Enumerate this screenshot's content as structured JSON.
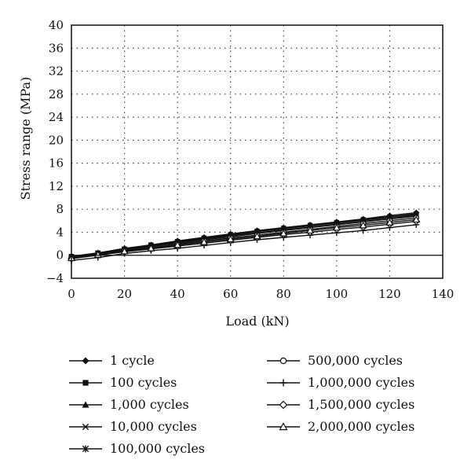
{
  "chart_data": {
    "type": "line",
    "title": "",
    "xlabel": "Load (kN)",
    "ylabel": "Stress range (MPa)",
    "xlim": [
      0,
      140
    ],
    "ylim": [
      -4,
      40
    ],
    "x_ticks": [
      0,
      20,
      40,
      60,
      80,
      100,
      120,
      140
    ],
    "y_ticks": [
      -4,
      0,
      4,
      8,
      12,
      16,
      20,
      24,
      28,
      32,
      36,
      40
    ],
    "grid": "dotted",
    "legend_position": "bottom",
    "x": [
      0,
      10,
      20,
      30,
      40,
      50,
      60,
      70,
      80,
      90,
      100,
      110,
      120,
      130
    ],
    "series": [
      {
        "name": "1 cycle",
        "marker": "diamond-filled",
        "values": [
          -0.2,
          0.4,
          1.2,
          1.8,
          2.5,
          3.1,
          3.7,
          4.3,
          4.8,
          5.3,
          5.8,
          6.3,
          6.9,
          7.4
        ]
      },
      {
        "name": "100 cycles",
        "marker": "square-filled",
        "values": [
          -0.2,
          0.4,
          1.1,
          1.8,
          2.4,
          3.0,
          3.6,
          4.2,
          4.7,
          5.2,
          5.7,
          6.2,
          6.7,
          7.2
        ]
      },
      {
        "name": "1,000 cycles",
        "marker": "triangle-filled",
        "values": [
          -0.2,
          0.4,
          1.1,
          1.7,
          2.3,
          2.9,
          3.5,
          4.1,
          4.6,
          5.1,
          5.6,
          6.1,
          6.6,
          7.1
        ]
      },
      {
        "name": "10,000 cycles",
        "marker": "x",
        "values": [
          -0.3,
          0.3,
          1.0,
          1.6,
          2.2,
          2.8,
          3.4,
          3.9,
          4.4,
          4.9,
          5.4,
          5.9,
          6.4,
          6.9
        ]
      },
      {
        "name": "100,000 cycles",
        "marker": "asterisk",
        "values": [
          -0.3,
          0.3,
          0.9,
          1.5,
          2.1,
          2.7,
          3.2,
          3.8,
          4.3,
          4.8,
          5.3,
          5.8,
          6.3,
          6.8
        ]
      },
      {
        "name": "500,000 cycles",
        "marker": "circle-open",
        "values": [
          -0.4,
          0.2,
          0.8,
          1.3,
          1.9,
          2.5,
          3.0,
          3.5,
          4.0,
          4.5,
          5.0,
          5.5,
          6.0,
          6.5
        ]
      },
      {
        "name": "1,000,000 cycles",
        "marker": "plus",
        "values": [
          -0.9,
          -0.4,
          0.3,
          0.8,
          1.2,
          1.7,
          2.2,
          2.7,
          3.1,
          3.5,
          3.9,
          4.3,
          4.8,
          5.3
        ]
      },
      {
        "name": "1,500,000 cycles",
        "marker": "diamond-open",
        "values": [
          -0.6,
          0.0,
          0.6,
          1.1,
          1.6,
          2.1,
          2.6,
          3.1,
          3.6,
          4.0,
          4.5,
          4.9,
          5.4,
          5.9
        ]
      },
      {
        "name": "2,000,000 cycles",
        "marker": "triangle-open",
        "values": [
          -0.5,
          0.1,
          0.7,
          1.2,
          1.8,
          2.3,
          2.8,
          3.3,
          3.8,
          4.3,
          4.8,
          5.2,
          5.7,
          6.2
        ]
      }
    ],
    "colors": {
      "line": "#111111",
      "grid": "#444444",
      "background": "#ffffff"
    }
  }
}
